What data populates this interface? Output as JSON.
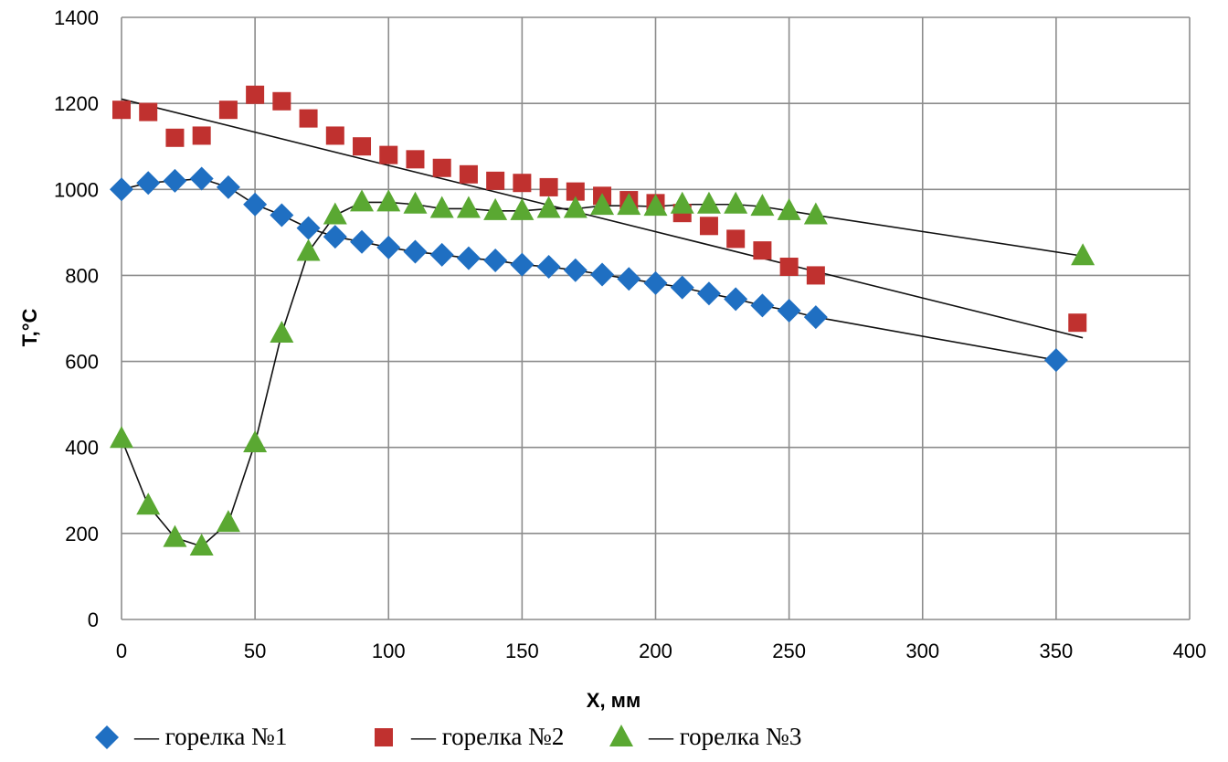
{
  "chart_data": {
    "type": "scatter",
    "title": "",
    "xlabel": "X, мм",
    "ylabel": "T,°C",
    "xlim": [
      0,
      400
    ],
    "ylim": [
      0,
      1400
    ],
    "x_ticks": [
      0,
      50,
      100,
      150,
      200,
      250,
      300,
      350,
      400
    ],
    "y_ticks": [
      0,
      200,
      400,
      600,
      800,
      1000,
      1200,
      1400
    ],
    "grid": true,
    "legend_position": "bottom",
    "series": [
      {
        "name": "— горелка №1",
        "marker": "diamond",
        "color": "#1f6fc2",
        "x": [
          0,
          10,
          20,
          30,
          40,
          50,
          60,
          70,
          80,
          90,
          100,
          110,
          120,
          130,
          140,
          150,
          160,
          170,
          180,
          190,
          200,
          210,
          220,
          230,
          240,
          250,
          260,
          350
        ],
        "y": [
          1000,
          1015,
          1020,
          1025,
          1005,
          965,
          940,
          910,
          890,
          878,
          865,
          855,
          848,
          840,
          835,
          825,
          820,
          812,
          802,
          792,
          782,
          772,
          758,
          745,
          730,
          718,
          703,
          603
        ],
        "trend": {
          "x": [
            0,
            10,
            20,
            30,
            40,
            50,
            60,
            70,
            80,
            90,
            100,
            110,
            120,
            130,
            140,
            150,
            160,
            170,
            180,
            190,
            200,
            210,
            220,
            230,
            240,
            250,
            260,
            350
          ],
          "y": [
            1000,
            1015,
            1020,
            1025,
            1005,
            965,
            940,
            910,
            890,
            878,
            865,
            855,
            848,
            840,
            835,
            825,
            820,
            812,
            802,
            792,
            782,
            772,
            758,
            745,
            730,
            718,
            703,
            603
          ]
        }
      },
      {
        "name": "— горелка №2",
        "marker": "square",
        "color": "#c0312f",
        "x": [
          0,
          10,
          20,
          30,
          40,
          50,
          60,
          70,
          80,
          90,
          100,
          110,
          120,
          130,
          140,
          150,
          160,
          170,
          180,
          190,
          200,
          210,
          220,
          230,
          240,
          250,
          260,
          358
        ],
        "y": [
          1185,
          1180,
          1120,
          1125,
          1185,
          1220,
          1205,
          1165,
          1125,
          1100,
          1080,
          1070,
          1050,
          1035,
          1020,
          1015,
          1005,
          995,
          985,
          975,
          968,
          945,
          915,
          885,
          858,
          820,
          800,
          690
        ],
        "trend": {
          "x": [
            0,
            360
          ],
          "y": [
            1210,
            655
          ]
        }
      },
      {
        "name": "— горелка №3",
        "marker": "triangle",
        "color": "#5aa832",
        "x": [
          0,
          10,
          20,
          30,
          40,
          50,
          60,
          70,
          80,
          90,
          100,
          110,
          120,
          130,
          140,
          150,
          160,
          170,
          180,
          190,
          200,
          210,
          220,
          230,
          240,
          250,
          260,
          360
        ],
        "y": [
          420,
          265,
          190,
          170,
          225,
          410,
          665,
          855,
          940,
          970,
          970,
          965,
          955,
          955,
          950,
          950,
          955,
          955,
          962,
          962,
          960,
          965,
          965,
          965,
          960,
          950,
          940,
          845
        ],
        "trend": {
          "x": [
            0,
            10,
            20,
            30,
            40,
            50,
            60,
            70,
            80,
            90,
            100,
            110,
            120,
            130,
            140,
            150,
            160,
            170,
            180,
            190,
            200,
            210,
            220,
            230,
            240,
            250,
            260,
            360
          ],
          "y": [
            420,
            265,
            190,
            170,
            225,
            410,
            665,
            855,
            940,
            970,
            970,
            965,
            955,
            955,
            950,
            950,
            955,
            955,
            962,
            962,
            960,
            965,
            965,
            965,
            960,
            950,
            940,
            845
          ]
        }
      }
    ]
  }
}
